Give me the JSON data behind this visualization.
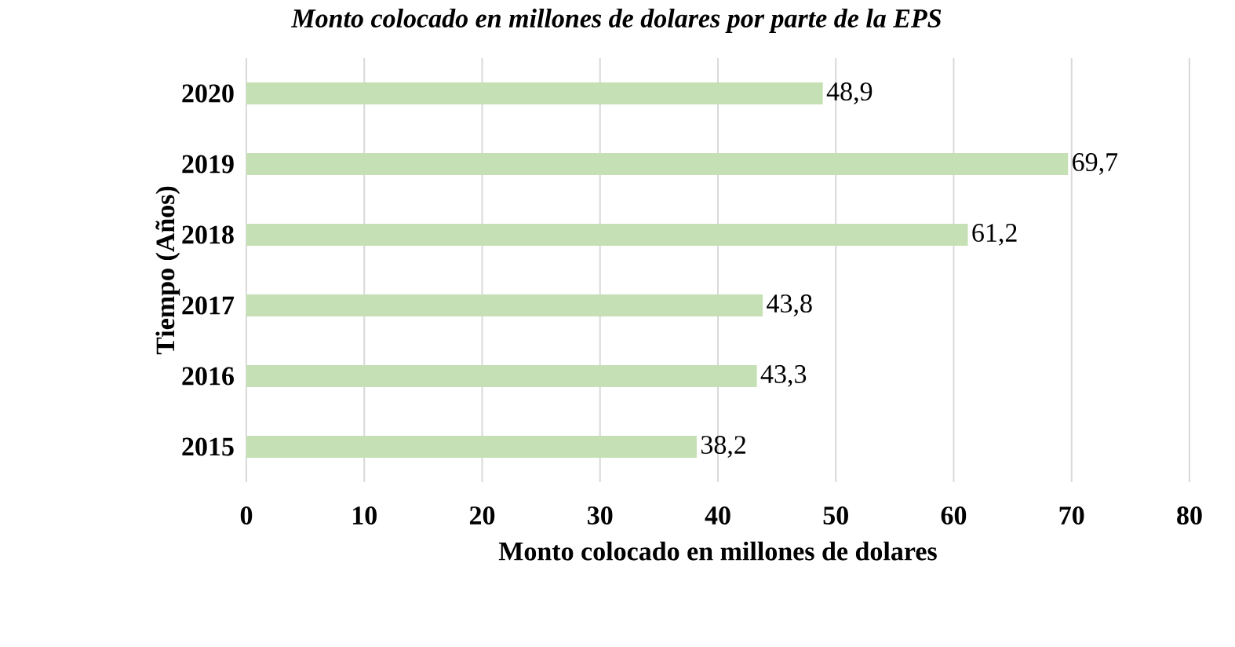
{
  "chart_data": {
    "type": "bar",
    "orientation": "horizontal",
    "title": "Monto colocado en millones de dolares por parte de la EPS",
    "xlabel": "Monto colocado en millones de dolares",
    "ylabel": "Tiempo (Años)",
    "categories": [
      "2020",
      "2019",
      "2018",
      "2017",
      "2016",
      "2015"
    ],
    "values": [
      48.9,
      69.7,
      61.2,
      43.8,
      43.3,
      38.2
    ],
    "value_labels": [
      "48,9",
      "69,7",
      "61,2",
      "43,8",
      "43,3",
      "38,2"
    ],
    "color": "#c5e0b4",
    "xlim": [
      0,
      80
    ],
    "xticks": [
      0,
      10,
      20,
      30,
      40,
      50,
      60,
      70,
      80
    ],
    "grid": "x"
  }
}
